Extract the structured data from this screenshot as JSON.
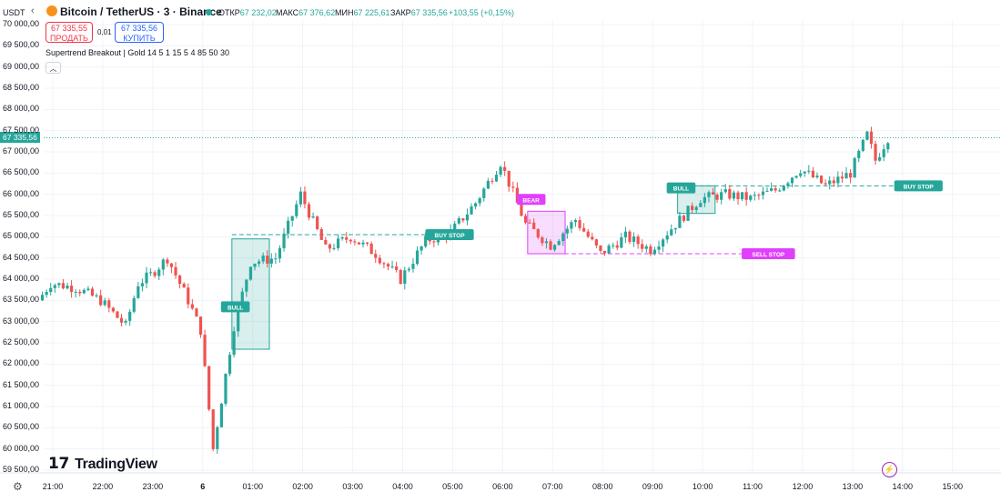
{
  "header": {
    "axis_currency": "USDT",
    "symbol_title": "Bitcoin / TetherUS · 3 · Binance",
    "ohlc": [
      {
        "key": "ОТКР",
        "value": "67 232,02"
      },
      {
        "key": "МАКС",
        "value": "67 376,62"
      },
      {
        "key": "МИН",
        "value": "67 225,61"
      },
      {
        "key": "ЗАКР",
        "value": "67 335,56"
      }
    ],
    "change": "+103,55 (+0,15%)"
  },
  "trade": {
    "sell_price": "67 335,55",
    "sell_label": "ПРОДАТЬ",
    "spread": "0,01",
    "buy_price": "67 335,56",
    "buy_label": "КУПИТЬ"
  },
  "indicator": {
    "label": "Supertrend Breakout | Gold 14 5 1 15 5 4 85 50 30"
  },
  "price_axis": {
    "labels": [
      "70 000,00",
      "69 500,00",
      "69 000,00",
      "68 500,00",
      "68 000,00",
      "67 500,00",
      "67 000,00",
      "66 500,00",
      "66 000,00",
      "65 500,00",
      "65 000,00",
      "64 500,00",
      "64 000,00",
      "63 500,00",
      "63 000,00",
      "62 500,00",
      "62 000,00",
      "61 500,00",
      "61 000,00",
      "60 500,00",
      "60 000,00",
      "59 500,00"
    ],
    "current_price": "67 335,56"
  },
  "time_axis": {
    "labels": [
      "21:00",
      "22:00",
      "23:00",
      "6",
      "01:00",
      "02:00",
      "03:00",
      "04:00",
      "05:00",
      "06:00",
      "07:00",
      "08:00",
      "09:00",
      "10:00",
      "11:00",
      "12:00",
      "13:00",
      "14:00",
      "15:00"
    ]
  },
  "markers": {
    "bull_1": "BULL",
    "buy_stop_1": "BUY STOP",
    "bear": "BEAR",
    "sell_stop": "SELL STOP",
    "bull_2": "BULL",
    "buy_stop_2": "BUY STOP"
  },
  "branding": {
    "logo_text": "TradingView"
  },
  "colors": {
    "up": "#26a69a",
    "down": "#ef5350",
    "bull_box": "#26a69a",
    "bear_box": "#e040fb",
    "sell": "#f23645",
    "buy": "#2962ff"
  },
  "chart_data": {
    "type": "candlestick",
    "x_range": [
      "20:45",
      "15:30"
    ],
    "ylim": [
      59500,
      70000
    ],
    "anchors": [
      {
        "time": "20:45",
        "price": 63500
      },
      {
        "time": "21:00",
        "price": 63900
      },
      {
        "time": "21:30",
        "price": 63800
      },
      {
        "time": "22:00",
        "price": 63500
      },
      {
        "time": "22:30",
        "price": 62900
      },
      {
        "time": "22:45",
        "price": 63900
      },
      {
        "time": "23:00",
        "price": 64100
      },
      {
        "time": "23:20",
        "price": 64500
      },
      {
        "time": "23:45",
        "price": 63500
      },
      {
        "time": "00:00",
        "price": 62800
      },
      {
        "time": "00:15",
        "price": 60000
      },
      {
        "time": "00:40",
        "price": 62900
      },
      {
        "time": "01:00",
        "price": 64400
      },
      {
        "time": "01:30",
        "price": 64500
      },
      {
        "time": "02:00",
        "price": 66000
      },
      {
        "time": "02:30",
        "price": 64700
      },
      {
        "time": "03:00",
        "price": 65000
      },
      {
        "time": "03:30",
        "price": 64600
      },
      {
        "time": "04:00",
        "price": 64000
      },
      {
        "time": "04:30",
        "price": 64900
      },
      {
        "time": "05:00",
        "price": 65100
      },
      {
        "time": "05:30",
        "price": 65800
      },
      {
        "time": "06:00",
        "price": 66750
      },
      {
        "time": "06:30",
        "price": 65300
      },
      {
        "time": "07:00",
        "price": 64800
      },
      {
        "time": "07:30",
        "price": 65400
      },
      {
        "time": "08:00",
        "price": 64600
      },
      {
        "time": "08:30",
        "price": 65000
      },
      {
        "time": "09:00",
        "price": 64700
      },
      {
        "time": "09:30",
        "price": 65300
      },
      {
        "time": "10:00",
        "price": 65900
      },
      {
        "time": "10:30",
        "price": 66000
      },
      {
        "time": "11:00",
        "price": 65900
      },
      {
        "time": "11:30",
        "price": 66100
      },
      {
        "time": "12:00",
        "price": 66600
      },
      {
        "time": "12:30",
        "price": 66200
      },
      {
        "time": "13:00",
        "price": 66500
      },
      {
        "time": "13:20",
        "price": 67400
      },
      {
        "time": "13:30",
        "price": 66800
      },
      {
        "time": "13:45",
        "price": 67335.56
      }
    ],
    "zones": [
      {
        "label": "BULL",
        "from": "00:35",
        "to": "01:20",
        "low": 62350,
        "high": 64950
      },
      {
        "label": "BEAR",
        "from": "06:30",
        "to": "07:15",
        "low": 64600,
        "high": 65600
      },
      {
        "label": "BULL",
        "from": "09:30",
        "to": "10:15",
        "low": 65550,
        "high": 66200
      }
    ],
    "levels": [
      {
        "label": "BUY STOP",
        "price": 65050,
        "from": "00:35",
        "to": "05:00"
      },
      {
        "label": "SELL STOP",
        "price": 64600,
        "from": "06:30",
        "to": "11:00"
      },
      {
        "label": "BUY STOP",
        "price": 66200,
        "from": "09:30",
        "to": "13:50"
      }
    ],
    "current_price": 67335.56
  }
}
